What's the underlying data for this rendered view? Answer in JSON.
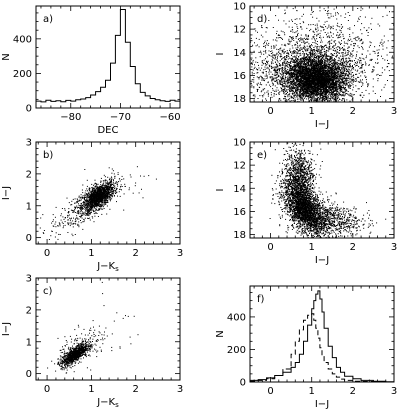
{
  "chart_data": [
    {
      "id": "a",
      "panel_label": "a)",
      "type": "histogram",
      "xlabel": "DEC",
      "ylabel": "N",
      "xlim": [
        -87,
        -58
      ],
      "ylim": [
        0,
        590
      ],
      "xticks": [
        -80,
        -70,
        -60
      ],
      "xtick_labels": [
        "−80",
        "−70",
        "−60"
      ],
      "yticks": [
        0,
        200,
        400
      ],
      "ytick_labels": [
        "0",
        "200",
        "400"
      ],
      "series": [
        {
          "bin_edges": [
            -87,
            -86,
            -85,
            -84,
            -83,
            -82,
            -81,
            -80,
            -79,
            -78,
            -77,
            -76,
            -75,
            -74,
            -73,
            -72,
            -71,
            -70,
            -69,
            -68,
            -67,
            -66,
            -65,
            -64,
            -63,
            -62,
            -61,
            -60,
            -59,
            -58
          ],
          "counts": [
            40,
            35,
            45,
            38,
            42,
            36,
            44,
            40,
            48,
            52,
            60,
            75,
            95,
            120,
            160,
            260,
            420,
            570,
            380,
            240,
            140,
            90,
            70,
            55,
            48,
            42,
            38,
            45,
            40
          ]
        }
      ]
    },
    {
      "id": "b",
      "panel_label": "b)",
      "type": "scatter",
      "xlabel": "J−K",
      "xlabel_sub": "s",
      "ylabel": "I−J",
      "xlim": [
        -0.25,
        3
      ],
      "ylim": [
        -0.2,
        3
      ],
      "xticks": [
        0,
        1,
        2,
        3
      ],
      "xtick_labels": [
        "0",
        "1",
        "2",
        "3"
      ],
      "yticks": [
        0,
        1,
        2,
        3
      ],
      "ytick_labels": [
        "0",
        "1",
        "2",
        "3"
      ],
      "clusters": [
        {
          "n": 1400,
          "cx": 1.15,
          "cy": 1.3,
          "sx": 0.18,
          "sy": 0.22,
          "rho": 0.6
        },
        {
          "n": 320,
          "cx": 0.75,
          "cy": 0.9,
          "sx": 0.35,
          "sy": 0.4,
          "rho": 0.7
        },
        {
          "n": 60,
          "cx": 1.6,
          "cy": 1.7,
          "sx": 0.4,
          "sy": 0.35,
          "rho": 0.3
        }
      ]
    },
    {
      "id": "c",
      "panel_label": "c)",
      "type": "scatter",
      "xlabel": "J−K",
      "xlabel_sub": "s",
      "ylabel": "I−J",
      "xlim": [
        -0.25,
        3
      ],
      "ylim": [
        -0.2,
        3
      ],
      "xticks": [
        0,
        1,
        2,
        3
      ],
      "xtick_labels": [
        "0",
        "1",
        "2",
        "3"
      ],
      "yticks": [
        0,
        1,
        2,
        3
      ],
      "ytick_labels": [
        "0",
        "1",
        "2",
        "3"
      ],
      "clusters": [
        {
          "n": 900,
          "cx": 0.6,
          "cy": 0.6,
          "sx": 0.15,
          "sy": 0.17,
          "rho": 0.75
        },
        {
          "n": 180,
          "cx": 0.8,
          "cy": 0.85,
          "sx": 0.28,
          "sy": 0.3,
          "rho": 0.5
        },
        {
          "n": 25,
          "cx": 1.4,
          "cy": 1.3,
          "sx": 0.4,
          "sy": 0.5,
          "rho": 0.2
        }
      ]
    },
    {
      "id": "d",
      "panel_label": "d)",
      "type": "scatter",
      "xlabel": "I−J",
      "ylabel": "I",
      "xlim": [
        -0.5,
        3
      ],
      "ylim": [
        18.3,
        10
      ],
      "y_inverted": true,
      "xticks": [
        0,
        1,
        2,
        3
      ],
      "xtick_labels": [
        "0",
        "1",
        "2",
        "3"
      ],
      "yticks": [
        10,
        12,
        14,
        16,
        18
      ],
      "ytick_labels": [
        "10",
        "12",
        "14",
        "16",
        "18"
      ],
      "clusters": [
        {
          "n": 3800,
          "cx": 1.1,
          "cy": 16.3,
          "sx": 0.35,
          "sy": 0.9,
          "rho": 0.1
        },
        {
          "n": 2200,
          "cx": 0.9,
          "cy": 15.6,
          "sx": 0.75,
          "sy": 1.6,
          "rho": 0.0
        },
        {
          "n": 400,
          "cx": 1.4,
          "cy": 13.0,
          "sx": 0.7,
          "sy": 1.6,
          "rho": 0.0
        }
      ]
    },
    {
      "id": "e",
      "panel_label": "e)",
      "type": "scatter",
      "xlabel": "I−J",
      "ylabel": "I",
      "xlim": [
        -0.5,
        3
      ],
      "ylim": [
        18.3,
        10
      ],
      "y_inverted": true,
      "xticks": [
        0,
        1,
        2,
        3
      ],
      "xtick_labels": [
        "0",
        "1",
        "2",
        "3"
      ],
      "yticks": [
        10,
        12,
        14,
        16,
        18
      ],
      "ytick_labels": [
        "10",
        "12",
        "14",
        "16",
        "18"
      ],
      "clusters": [
        {
          "n": 2200,
          "cx": 0.8,
          "cy": 15.6,
          "sx": 0.25,
          "sy": 1.1,
          "rho": 0.55
        },
        {
          "n": 900,
          "cx": 0.7,
          "cy": 13.0,
          "sx": 0.18,
          "sy": 1.3,
          "rho": 0.1
        },
        {
          "n": 900,
          "cx": 1.3,
          "cy": 16.6,
          "sx": 0.45,
          "sy": 0.8,
          "rho": 0.3
        }
      ]
    },
    {
      "id": "f",
      "panel_label": "f)",
      "type": "histogram",
      "xlabel": "I−J",
      "ylabel": "N",
      "xlim": [
        -0.5,
        3
      ],
      "ylim": [
        0,
        590
      ],
      "xticks": [
        0,
        1,
        2,
        3
      ],
      "xtick_labels": [
        "0",
        "1",
        "2",
        "3"
      ],
      "yticks": [
        0,
        200,
        400
      ],
      "ytick_labels": [
        "0",
        "200",
        "400"
      ],
      "series": [
        {
          "style": "solid",
          "bin_edges": [
            -0.5,
            -0.3,
            -0.1,
            0.1,
            0.3,
            0.5,
            0.6,
            0.7,
            0.8,
            0.9,
            1.0,
            1.05,
            1.1,
            1.15,
            1.2,
            1.25,
            1.3,
            1.4,
            1.5,
            1.6,
            1.7,
            1.8,
            2.0,
            2.2,
            2.5,
            2.8,
            3.0
          ],
          "counts": [
            10,
            15,
            25,
            40,
            60,
            90,
            120,
            170,
            250,
            350,
            450,
            500,
            540,
            560,
            510,
            430,
            330,
            220,
            150,
            90,
            60,
            35,
            20,
            10,
            5,
            2
          ]
        },
        {
          "style": "dashed",
          "bin_edges": [
            -0.5,
            -0.3,
            -0.1,
            0.1,
            0.3,
            0.5,
            0.6,
            0.7,
            0.8,
            0.9,
            1.0,
            1.05,
            1.1,
            1.15,
            1.2,
            1.25,
            1.3,
            1.4,
            1.5,
            1.6,
            1.7,
            1.8,
            2.0,
            2.2,
            2.5,
            2.8,
            3.0
          ],
          "counts": [
            5,
            10,
            20,
            40,
            80,
            170,
            250,
            320,
            380,
            410,
            420,
            380,
            330,
            270,
            210,
            160,
            120,
            80,
            50,
            30,
            18,
            10,
            5,
            3,
            1,
            0
          ]
        }
      ]
    }
  ]
}
